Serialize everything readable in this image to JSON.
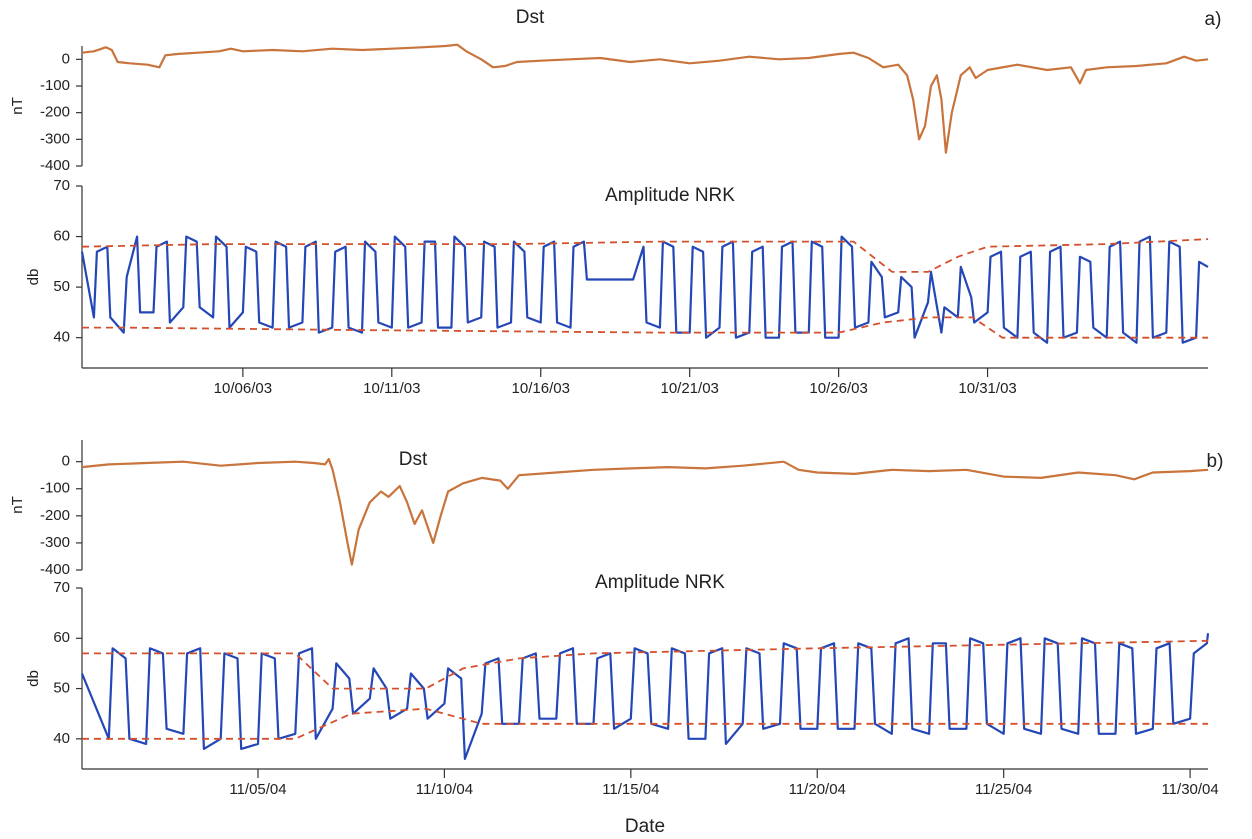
{
  "chart_data": [
    {
      "type": "line",
      "title": "Dst",
      "ylabel": "nT",
      "panel_label": "a)",
      "ylim": [
        -400,
        50
      ],
      "yticks": [
        -400,
        -300,
        -200,
        -100,
        0
      ],
      "xlim": [
        0.6,
        38.4
      ],
      "color": "#c8743c",
      "x": [
        0.6,
        1.0,
        1.4,
        1.6,
        1.8,
        2.2,
        2.8,
        3.2,
        3.4,
        3.8,
        4.5,
        5.2,
        5.6,
        6,
        7,
        8,
        9,
        10,
        11,
        12,
        12.8,
        13.2,
        13.5,
        14,
        14.4,
        14.8,
        15.2,
        16,
        17,
        18,
        19,
        20,
        21,
        22,
        23,
        24,
        25,
        26,
        26.5,
        27,
        27.5,
        28,
        28.3,
        28.5,
        28.7,
        28.9,
        29.1,
        29.3,
        29.45,
        29.6,
        29.8,
        30.1,
        30.4,
        30.6,
        31,
        32,
        33,
        33.8,
        34.1,
        34.3,
        35,
        36,
        37,
        37.6,
        38,
        38.4
      ],
      "values": [
        25,
        30,
        45,
        35,
        -10,
        -15,
        -20,
        -30,
        15,
        20,
        25,
        30,
        40,
        30,
        35,
        30,
        40,
        35,
        40,
        45,
        50,
        55,
        30,
        0,
        -30,
        -25,
        -10,
        -5,
        0,
        5,
        -10,
        0,
        -15,
        -5,
        10,
        0,
        5,
        20,
        25,
        5,
        -30,
        -20,
        -60,
        -150,
        -300,
        -250,
        -100,
        -60,
        -150,
        -350,
        -200,
        -60,
        -30,
        -70,
        -40,
        -20,
        -40,
        -30,
        -90,
        -40,
        -30,
        -25,
        -15,
        10,
        -5,
        0
      ]
    },
    {
      "type": "line",
      "title": "Amplitude NRK",
      "ylabel": "db",
      "ylim": [
        34,
        70
      ],
      "yticks": [
        40,
        50,
        60,
        70
      ],
      "xlim": [
        0.6,
        38.4
      ],
      "xticks": [
        {
          "value": 6,
          "label": "10/06/03"
        },
        {
          "value": 11,
          "label": "10/11/03"
        },
        {
          "value": 16,
          "label": "10/16/03"
        },
        {
          "value": 21,
          "label": "10/21/03"
        },
        {
          "value": 26,
          "label": "10/26/03"
        },
        {
          "value": 31,
          "label": "10/31/03"
        }
      ],
      "series": [
        {
          "color": "#2447b8",
          "dashed": false,
          "x": [
            0.6,
            1,
            1.1,
            1.45,
            1.55,
            2,
            2.1,
            2.45,
            2.55,
            3,
            3.1,
            3.45,
            3.55,
            4,
            4.1,
            4.45,
            4.55,
            5,
            5.1,
            5.45,
            5.55,
            6,
            6.1,
            6.45,
            6.55,
            7,
            7.1,
            7.45,
            7.55,
            8,
            8.1,
            8.45,
            8.55,
            9,
            9.1,
            9.45,
            9.55,
            10,
            10.1,
            10.45,
            10.55,
            11,
            11.1,
            11.45,
            11.55,
            12,
            12.1,
            12.45,
            12.55,
            13,
            13.1,
            13.45,
            13.55,
            14,
            14.1,
            14.45,
            14.55,
            15,
            15.1,
            15.45,
            15.55,
            16,
            16.1,
            16.45,
            16.55,
            17,
            17.1,
            17.45,
            17.55,
            18,
            18.1,
            18.45,
            18.55,
            19,
            19.1,
            19.45,
            19.55,
            20,
            20.1,
            20.45,
            20.55,
            21,
            21.1,
            21.45,
            21.55,
            22,
            22.1,
            22.45,
            22.55,
            23,
            23.1,
            23.45,
            23.55,
            24,
            24.1,
            24.45,
            24.55,
            25,
            25.1,
            25.45,
            25.55,
            26,
            26.1,
            26.45,
            26.55,
            27,
            27.1,
            27.45,
            27.55,
            28,
            28.1,
            28.45,
            28.55,
            29,
            29.1,
            29.45,
            29.55,
            30,
            30.1,
            30.45,
            30.55,
            31,
            31.1,
            31.45,
            31.55,
            32,
            32.1,
            32.45,
            32.55,
            33,
            33.1,
            33.45,
            33.55,
            34,
            34.1,
            34.45,
            34.55,
            35,
            35.1,
            35.45,
            35.55,
            36,
            36.1,
            36.45,
            36.55,
            37,
            37.1,
            37.45,
            37.55,
            38,
            38.1,
            38.4
          ],
          "values": [
            57,
            44,
            57,
            58,
            44,
            41,
            52,
            60,
            45,
            45,
            58,
            59,
            43,
            46,
            60,
            59,
            46,
            44,
            60,
            58,
            42,
            45,
            58,
            57,
            43,
            42,
            59,
            58,
            42,
            43,
            58,
            59,
            41,
            42,
            57,
            58,
            42,
            41,
            59,
            57,
            43,
            42,
            60,
            58,
            42,
            43,
            59,
            59,
            42,
            42,
            60,
            58,
            43,
            44,
            59,
            58,
            42,
            43,
            59,
            57,
            44,
            43,
            58,
            59,
            43,
            42,
            58,
            59,
            51.5,
            51.5,
            51.5,
            51.5,
            51.5,
            51.5,
            51.5,
            58,
            43,
            42,
            59,
            58,
            41,
            41,
            58,
            57,
            40,
            42,
            58,
            59,
            40,
            41,
            57,
            58,
            40,
            40,
            58,
            59,
            41,
            41,
            59,
            58,
            40,
            40,
            60,
            58,
            42,
            43,
            55,
            52,
            44,
            45,
            52,
            50,
            40,
            47,
            53,
            41,
            46,
            44,
            54,
            48,
            43,
            45,
            56,
            57,
            42,
            40,
            56,
            57,
            41,
            39,
            57,
            58,
            40,
            41,
            56,
            55,
            42,
            40,
            58,
            59,
            41,
            39,
            59,
            60,
            40,
            41,
            59,
            58,
            39,
            40,
            55,
            54
          ]
        },
        {
          "color": "#d4502c",
          "dashed": true,
          "x": [
            0.6,
            5,
            10,
            15,
            20,
            26.5,
            27.8,
            29,
            30,
            31,
            35,
            38.4
          ],
          "values": [
            58,
            58.5,
            58.5,
            58.5,
            59,
            59,
            53,
            53,
            56,
            58,
            58.5,
            59.5
          ]
        },
        {
          "color": "#d4502c",
          "dashed": true,
          "x": [
            0.6,
            2,
            10,
            20,
            26,
            27.5,
            29,
            30.5,
            31.5,
            38.4
          ],
          "values": [
            42,
            42,
            41.5,
            41,
            41,
            43,
            44,
            44,
            40,
            40
          ]
        }
      ]
    },
    {
      "type": "line",
      "title": "Dst",
      "ylabel": "nT",
      "panel_label": "b)",
      "ylim": [
        -400,
        80
      ],
      "yticks": [
        -400,
        -300,
        -200,
        -100,
        0
      ],
      "xlim": [
        0.28,
        30.48
      ],
      "color": "#c8743c",
      "x": [
        0.28,
        1,
        2,
        3,
        4,
        5,
        6,
        6.5,
        6.8,
        6.9,
        7.0,
        7.2,
        7.4,
        7.52,
        7.7,
        8,
        8.3,
        8.5,
        8.8,
        9.0,
        9.2,
        9.4,
        9.7,
        9.9,
        10.1,
        10.5,
        11,
        11.5,
        11.7,
        12,
        13,
        14,
        15,
        16,
        17,
        18,
        19.1,
        19.5,
        20,
        21,
        22,
        23,
        24,
        25,
        26,
        27,
        28,
        28.5,
        29,
        30,
        30.48
      ],
      "values": [
        -20,
        -10,
        -5,
        0,
        -15,
        -5,
        0,
        -5,
        -10,
        10,
        -30,
        -150,
        -300,
        -380,
        -250,
        -150,
        -110,
        -130,
        -90,
        -150,
        -230,
        -180,
        -300,
        -200,
        -110,
        -80,
        -60,
        -70,
        -100,
        -50,
        -40,
        -30,
        -25,
        -20,
        -25,
        -15,
        0,
        -30,
        -40,
        -45,
        -30,
        -35,
        -30,
        -55,
        -60,
        -40,
        -50,
        -65,
        -40,
        -35,
        -30
      ]
    },
    {
      "type": "line",
      "title": "Amplitude NRK",
      "ylabel": "db",
      "xlabel": "Date",
      "ylim": [
        34,
        70
      ],
      "yticks": [
        40,
        50,
        60,
        70
      ],
      "xlim": [
        0.28,
        30.48
      ],
      "xticks": [
        {
          "value": 5,
          "label": "11/05/04"
        },
        {
          "value": 10,
          "label": "11/10/04"
        },
        {
          "value": 15,
          "label": "11/15/04"
        },
        {
          "value": 20,
          "label": "11/20/04"
        },
        {
          "value": 25,
          "label": "11/25/04"
        },
        {
          "value": 30,
          "label": "11/30/04"
        }
      ],
      "series": [
        {
          "color": "#2447b8",
          "dashed": false,
          "x": [
            0.28,
            1,
            1.1,
            1.45,
            1.55,
            2,
            2.1,
            2.45,
            2.55,
            3,
            3.1,
            3.45,
            3.55,
            4,
            4.1,
            4.45,
            4.55,
            5,
            5.1,
            5.45,
            5.55,
            6,
            6.1,
            6.45,
            6.55,
            7,
            7.1,
            7.45,
            7.55,
            8,
            8.1,
            8.45,
            8.55,
            9,
            9.1,
            9.45,
            9.55,
            10,
            10.1,
            10.45,
            10.55,
            11,
            11.1,
            11.45,
            11.55,
            12,
            12.1,
            12.45,
            12.55,
            13,
            13.1,
            13.45,
            13.55,
            14,
            14.1,
            14.45,
            14.55,
            15,
            15.1,
            15.45,
            15.55,
            16,
            16.1,
            16.45,
            16.55,
            17,
            17.1,
            17.45,
            17.55,
            18,
            18.1,
            18.45,
            18.55,
            19,
            19.1,
            19.45,
            19.55,
            20,
            20.1,
            20.45,
            20.55,
            21,
            21.1,
            21.45,
            21.55,
            22,
            22.1,
            22.45,
            22.55,
            23,
            23.1,
            23.45,
            23.55,
            24,
            24.1,
            24.45,
            24.55,
            25,
            25.1,
            25.45,
            25.55,
            26,
            26.1,
            26.45,
            26.55,
            27,
            27.1,
            27.45,
            27.55,
            28,
            28.1,
            28.45,
            28.55,
            29,
            29.1,
            29.45,
            29.55,
            30,
            30.1,
            30.45,
            30.48
          ],
          "values": [
            53,
            40,
            58,
            56,
            40,
            39,
            58,
            57,
            42,
            41,
            57,
            58,
            38,
            40,
            57,
            56,
            38,
            39,
            57,
            56,
            40,
            41,
            57,
            58,
            40,
            46,
            55,
            52,
            45,
            48,
            54,
            50,
            44,
            46,
            53,
            50,
            44,
            47,
            54,
            52,
            36,
            45,
            55,
            56,
            43,
            43,
            56,
            57,
            44,
            44,
            57,
            58,
            43,
            43,
            56,
            57,
            42,
            44,
            58,
            57,
            43,
            42,
            58,
            57,
            40,
            40,
            57,
            58,
            39,
            43,
            58,
            57,
            42,
            43,
            59,
            58,
            42,
            42,
            58,
            59,
            42,
            42,
            59,
            58,
            43,
            41,
            59,
            60,
            42,
            41,
            59,
            59,
            42,
            42,
            60,
            59,
            43,
            41,
            59,
            60,
            42,
            41,
            60,
            59,
            42,
            41,
            60,
            59,
            41,
            41,
            59,
            58,
            41,
            42,
            58,
            59,
            43,
            44,
            57,
            59,
            61
          ]
        },
        {
          "color": "#d4502c",
          "dashed": true,
          "x": [
            0.28,
            6,
            7,
            9.5,
            10.5,
            12,
            14,
            20,
            30.48
          ],
          "values": [
            57,
            57,
            50,
            50,
            54,
            56,
            57,
            58,
            59.5
          ]
        },
        {
          "color": "#d4502c",
          "dashed": true,
          "x": [
            0.28,
            6,
            7.5,
            9.5,
            11,
            30.48
          ],
          "values": [
            40,
            40,
            45,
            46,
            43,
            43
          ]
        }
      ]
    }
  ]
}
